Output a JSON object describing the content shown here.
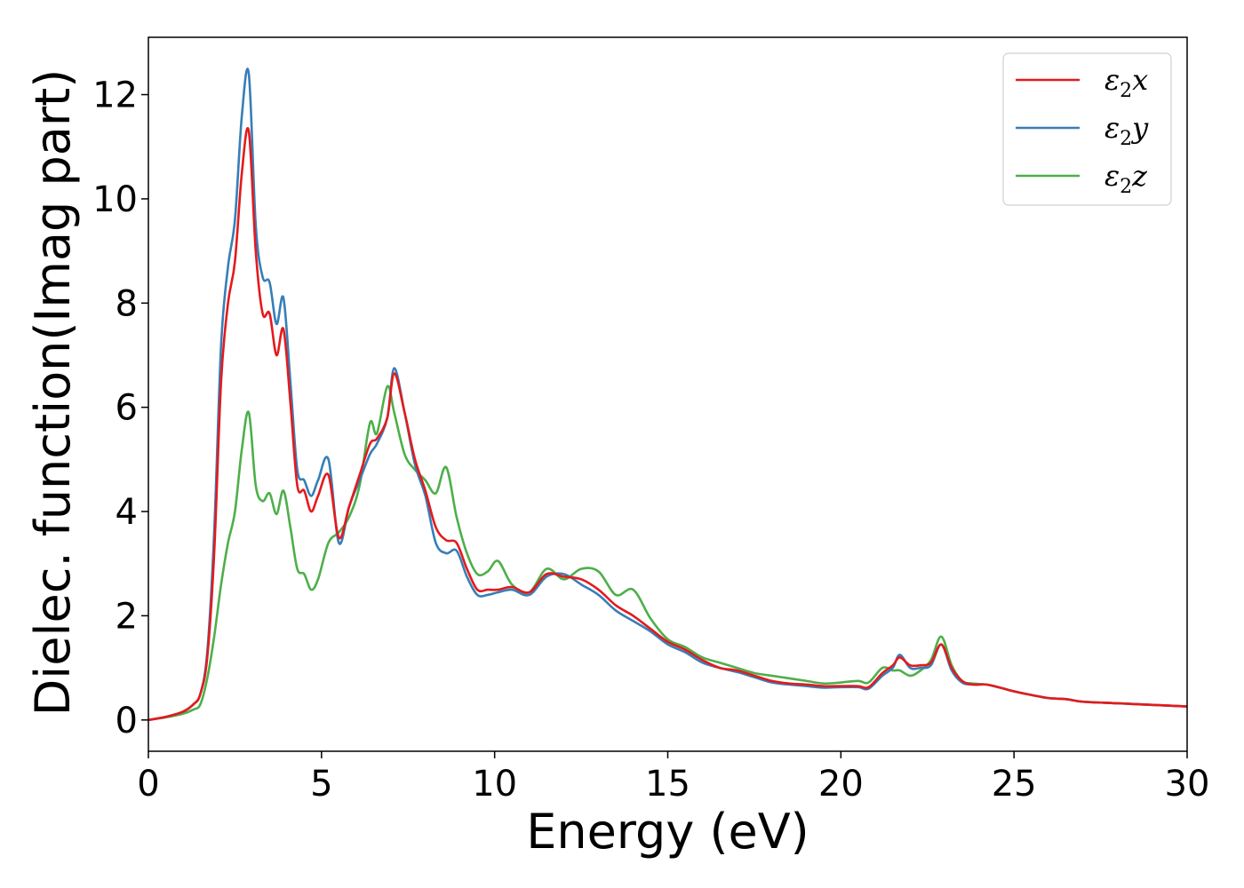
{
  "chart_data": {
    "type": "line",
    "title": "",
    "xlabel": "Energy (eV)",
    "ylabel": "Dielec. function(Imag part)",
    "xlim": [
      0,
      30
    ],
    "ylim": [
      -0.6,
      13.1
    ],
    "xticks": [
      0,
      5,
      10,
      15,
      20,
      25,
      30
    ],
    "yticks": [
      0,
      2,
      4,
      6,
      8,
      10,
      12
    ],
    "grid": false,
    "legend_position": "top-right",
    "series": [
      {
        "name": "ε2x",
        "label_base": "ε",
        "label_sub": "2",
        "label_suffix": "x",
        "color": "#e41a1c",
        "x": [
          0,
          0.5,
          1.0,
          1.3,
          1.5,
          1.7,
          1.9,
          2.1,
          2.3,
          2.5,
          2.7,
          2.9,
          3.1,
          3.3,
          3.5,
          3.7,
          3.9,
          4.1,
          4.3,
          4.5,
          4.7,
          4.9,
          5.2,
          5.5,
          5.8,
          6.1,
          6.4,
          6.6,
          6.9,
          7.1,
          7.4,
          7.7,
          8.0,
          8.3,
          8.6,
          8.9,
          9.2,
          9.5,
          9.8,
          10.1,
          10.5,
          11.0,
          11.5,
          12.0,
          12.5,
          13.0,
          13.5,
          14.0,
          14.5,
          15.0,
          15.5,
          16.0,
          16.5,
          17.0,
          17.5,
          18.0,
          18.5,
          19.0,
          19.5,
          20.0,
          20.5,
          20.8,
          21.2,
          21.5,
          21.7,
          22.0,
          22.3,
          22.6,
          22.9,
          23.2,
          23.5,
          23.8,
          24.2,
          24.6,
          25.0,
          25.5,
          26.0,
          26.5,
          27.0,
          28.0,
          29.0,
          30.0
        ],
        "y": [
          0.0,
          0.06,
          0.16,
          0.3,
          0.5,
          1.2,
          3.2,
          6.5,
          8.0,
          8.8,
          10.5,
          11.3,
          9.0,
          7.8,
          7.8,
          7.0,
          7.5,
          6.1,
          4.5,
          4.4,
          4.0,
          4.3,
          4.7,
          3.5,
          4.1,
          4.7,
          5.3,
          5.4,
          5.8,
          6.65,
          5.9,
          5.0,
          4.4,
          3.7,
          3.45,
          3.4,
          2.9,
          2.5,
          2.5,
          2.5,
          2.55,
          2.45,
          2.8,
          2.75,
          2.7,
          2.5,
          2.2,
          2.0,
          1.75,
          1.5,
          1.35,
          1.15,
          1.0,
          0.95,
          0.85,
          0.75,
          0.7,
          0.68,
          0.65,
          0.65,
          0.65,
          0.63,
          0.9,
          1.05,
          1.2,
          1.05,
          1.05,
          1.1,
          1.45,
          1.0,
          0.75,
          0.68,
          0.68,
          0.62,
          0.55,
          0.48,
          0.42,
          0.4,
          0.35,
          0.32,
          0.29,
          0.26
        ]
      },
      {
        "name": "ε2y",
        "label_base": "ε",
        "label_sub": "2",
        "label_suffix": "y",
        "color": "#377eb8",
        "x": [
          0,
          0.5,
          1.0,
          1.3,
          1.5,
          1.7,
          1.9,
          2.1,
          2.3,
          2.5,
          2.7,
          2.9,
          3.1,
          3.3,
          3.5,
          3.7,
          3.9,
          4.1,
          4.3,
          4.5,
          4.7,
          4.9,
          5.2,
          5.5,
          5.8,
          6.1,
          6.4,
          6.6,
          6.9,
          7.1,
          7.4,
          7.7,
          8.0,
          8.3,
          8.6,
          8.9,
          9.2,
          9.5,
          9.8,
          10.1,
          10.5,
          11.0,
          11.5,
          12.0,
          12.5,
          13.0,
          13.5,
          14.0,
          14.5,
          15.0,
          15.5,
          16.0,
          16.5,
          17.0,
          17.5,
          18.0,
          18.5,
          19.0,
          19.5,
          20.0,
          20.5,
          20.8,
          21.2,
          21.5,
          21.7,
          22.0,
          22.3,
          22.6,
          22.9,
          23.2,
          23.5,
          23.8,
          24.2,
          24.6,
          25.0,
          25.5,
          26.0,
          26.5,
          27.0,
          28.0,
          29.0,
          30.0
        ],
        "y": [
          0.0,
          0.06,
          0.16,
          0.3,
          0.5,
          1.3,
          3.6,
          7.2,
          8.7,
          9.6,
          11.6,
          12.4,
          9.5,
          8.5,
          8.4,
          7.6,
          8.1,
          6.5,
          4.8,
          4.6,
          4.3,
          4.6,
          5.0,
          3.4,
          4.1,
          4.6,
          5.1,
          5.3,
          5.8,
          6.75,
          5.9,
          4.9,
          4.3,
          3.4,
          3.2,
          3.25,
          2.75,
          2.4,
          2.4,
          2.45,
          2.5,
          2.4,
          2.75,
          2.8,
          2.6,
          2.4,
          2.1,
          1.9,
          1.7,
          1.45,
          1.3,
          1.1,
          1.0,
          0.92,
          0.82,
          0.72,
          0.68,
          0.65,
          0.62,
          0.63,
          0.63,
          0.6,
          0.85,
          1.0,
          1.25,
          1.0,
          1.0,
          1.05,
          1.45,
          0.95,
          0.72,
          0.68,
          0.68,
          0.62,
          0.55,
          0.48,
          0.42,
          0.4,
          0.35,
          0.32,
          0.29,
          0.26
        ]
      },
      {
        "name": "ε2z",
        "label_base": "ε",
        "label_sub": "2",
        "label_suffix": "z",
        "color": "#4daf4a",
        "x": [
          0,
          0.5,
          1.0,
          1.3,
          1.5,
          1.7,
          1.9,
          2.1,
          2.3,
          2.5,
          2.7,
          2.9,
          3.1,
          3.3,
          3.5,
          3.7,
          3.9,
          4.1,
          4.3,
          4.5,
          4.7,
          4.9,
          5.2,
          5.5,
          5.8,
          6.1,
          6.4,
          6.6,
          6.9,
          7.1,
          7.4,
          7.7,
          8.0,
          8.3,
          8.6,
          8.9,
          9.2,
          9.5,
          9.8,
          10.1,
          10.5,
          11.0,
          11.5,
          12.0,
          12.5,
          13.0,
          13.5,
          14.0,
          14.5,
          15.0,
          15.5,
          16.0,
          16.5,
          17.0,
          17.5,
          18.0,
          18.5,
          19.0,
          19.5,
          20.0,
          20.5,
          20.8,
          21.2,
          21.5,
          21.7,
          22.0,
          22.3,
          22.6,
          22.9,
          23.2,
          23.5,
          23.8,
          24.2,
          24.6,
          25.0,
          25.5,
          26.0,
          26.5,
          27.0,
          28.0,
          29.0,
          30.0
        ],
        "y": [
          0.0,
          0.05,
          0.12,
          0.2,
          0.3,
          0.8,
          1.6,
          2.6,
          3.4,
          4.0,
          5.2,
          5.9,
          4.5,
          4.2,
          4.35,
          3.95,
          4.4,
          3.7,
          2.9,
          2.8,
          2.5,
          2.7,
          3.4,
          3.6,
          3.9,
          4.5,
          5.7,
          5.5,
          6.4,
          5.9,
          5.1,
          4.8,
          4.6,
          4.35,
          4.85,
          3.9,
          3.2,
          2.8,
          2.85,
          3.05,
          2.6,
          2.45,
          2.9,
          2.7,
          2.9,
          2.85,
          2.4,
          2.5,
          1.95,
          1.55,
          1.4,
          1.2,
          1.1,
          1.0,
          0.9,
          0.85,
          0.8,
          0.75,
          0.7,
          0.72,
          0.75,
          0.72,
          1.0,
          0.95,
          0.95,
          0.85,
          0.95,
          1.15,
          1.6,
          1.05,
          0.75,
          0.7,
          0.68,
          0.62,
          0.55,
          0.48,
          0.42,
          0.4,
          0.35,
          0.32,
          0.29,
          0.26
        ]
      }
    ]
  }
}
